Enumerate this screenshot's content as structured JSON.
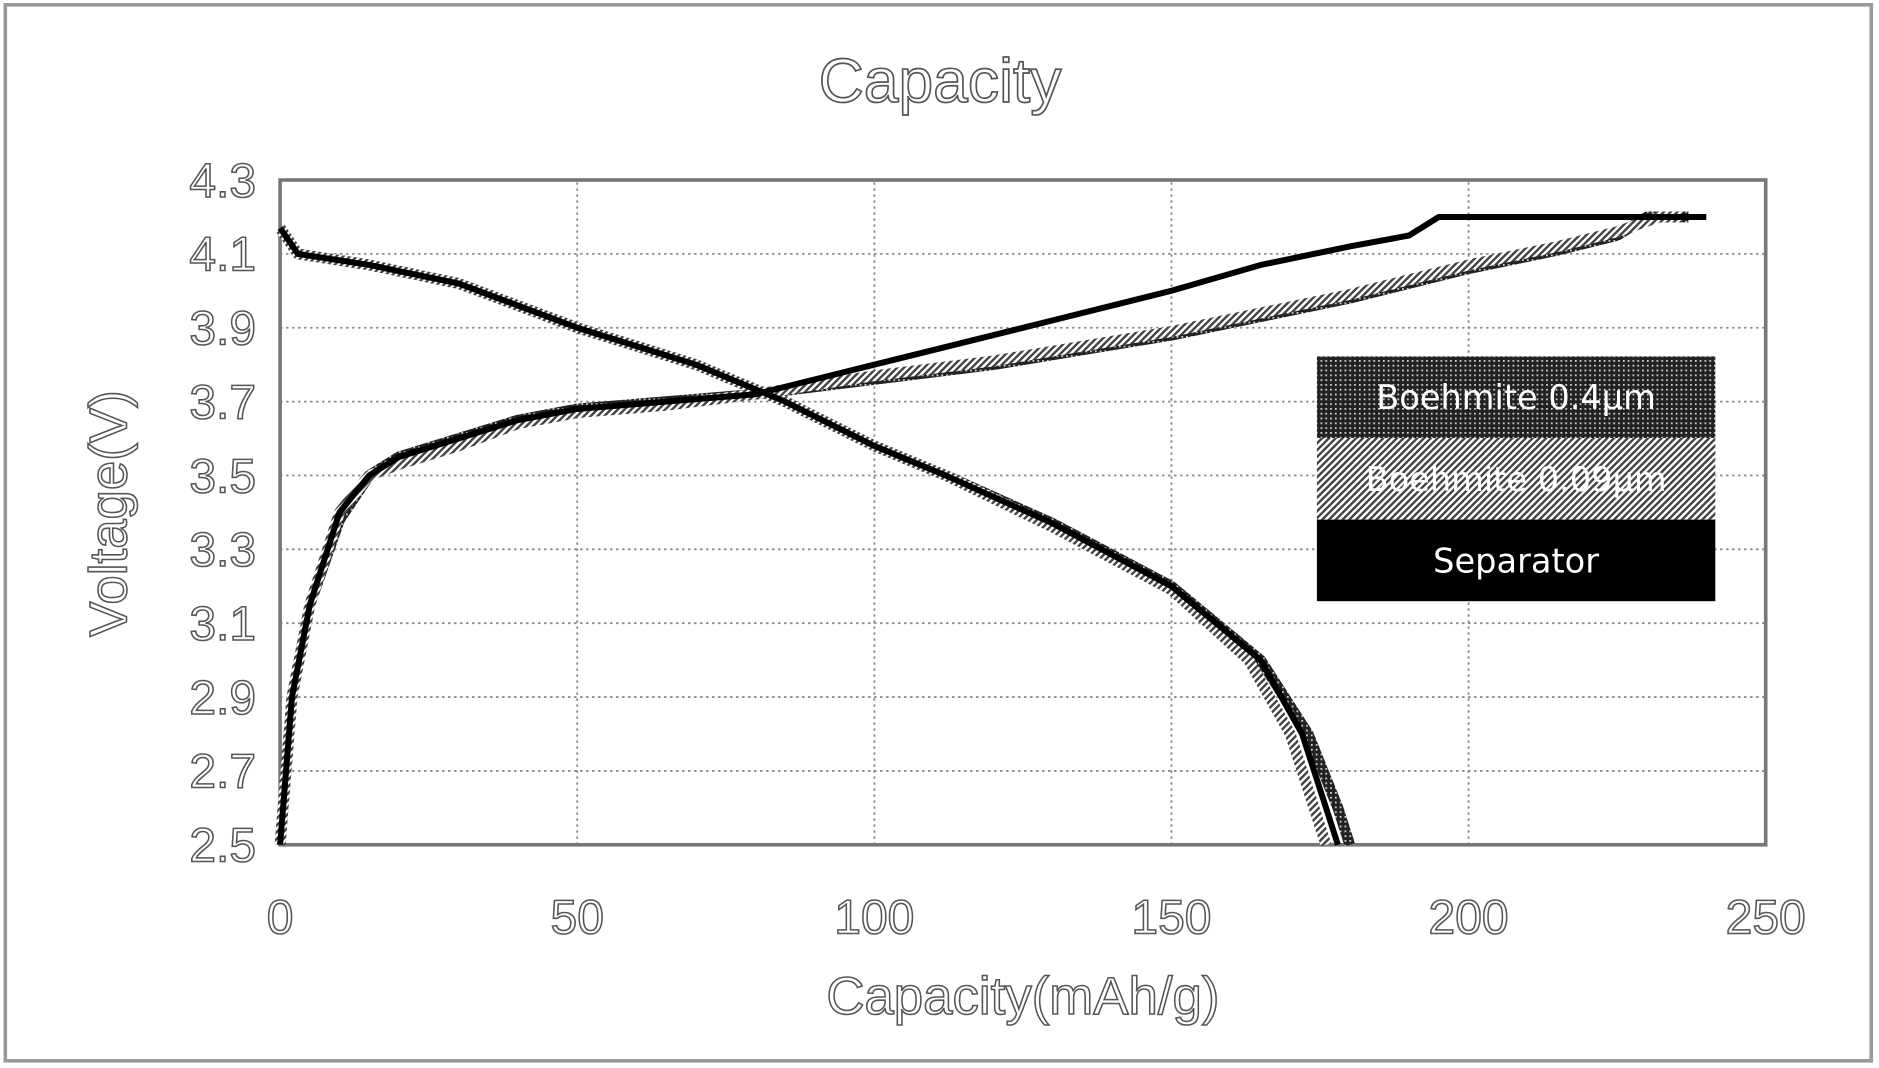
{
  "chart_data": {
    "type": "line",
    "title": "Capacity",
    "xlabel": "Capacity(mAh/g)",
    "ylabel": "Voltage(V)",
    "xlim": [
      0,
      250
    ],
    "ylim": [
      2.5,
      4.3
    ],
    "xticks": [
      "0",
      "50",
      "100",
      "150",
      "200",
      "250"
    ],
    "yticks": [
      "2.5",
      "2.7",
      "2.9",
      "3.1",
      "3.3",
      "3.5",
      "3.7",
      "3.9",
      "4.1",
      "4.3"
    ],
    "grid": true,
    "legend_position": "right",
    "series": [
      {
        "name": "Boehmite 0.4µm",
        "pattern": "crosshatch",
        "color": "#333333",
        "charge": [
          [
            0,
            2.5
          ],
          [
            2,
            2.9
          ],
          [
            5,
            3.15
          ],
          [
            10,
            3.38
          ],
          [
            15,
            3.5
          ],
          [
            20,
            3.55
          ],
          [
            30,
            3.6
          ],
          [
            40,
            3.65
          ],
          [
            50,
            3.68
          ],
          [
            65,
            3.7
          ],
          [
            80,
            3.72
          ],
          [
            100,
            3.76
          ],
          [
            120,
            3.8
          ],
          [
            150,
            3.88
          ],
          [
            180,
            3.98
          ],
          [
            200,
            4.06
          ],
          [
            215,
            4.11
          ],
          [
            225,
            4.15
          ],
          [
            230,
            4.2
          ],
          [
            237,
            4.2
          ]
        ],
        "discharge": [
          [
            0,
            4.17
          ],
          [
            3,
            4.1
          ],
          [
            15,
            4.07
          ],
          [
            30,
            4.02
          ],
          [
            40,
            3.96
          ],
          [
            50,
            3.9
          ],
          [
            70,
            3.8
          ],
          [
            85,
            3.7
          ],
          [
            100,
            3.58
          ],
          [
            112,
            3.5
          ],
          [
            130,
            3.37
          ],
          [
            150,
            3.2
          ],
          [
            165,
            3.0
          ],
          [
            173,
            2.8
          ],
          [
            178,
            2.6
          ],
          [
            180,
            2.5
          ]
        ]
      },
      {
        "name": "Boehmite 0.09µm",
        "pattern": "diagonal",
        "color": "#777777",
        "charge": [
          [
            0,
            2.5
          ],
          [
            2,
            2.9
          ],
          [
            5,
            3.15
          ],
          [
            10,
            3.4
          ],
          [
            15,
            3.5
          ],
          [
            20,
            3.53
          ],
          [
            30,
            3.58
          ],
          [
            40,
            3.64
          ],
          [
            50,
            3.67
          ],
          [
            65,
            3.69
          ],
          [
            80,
            3.72
          ],
          [
            100,
            3.77
          ],
          [
            120,
            3.81
          ],
          [
            150,
            3.89
          ],
          [
            180,
            3.99
          ],
          [
            200,
            4.07
          ],
          [
            215,
            4.12
          ],
          [
            225,
            4.16
          ],
          [
            232,
            4.2
          ],
          [
            236,
            4.2
          ]
        ],
        "discharge": [
          [
            0,
            4.17
          ],
          [
            3,
            4.1
          ],
          [
            15,
            4.07
          ],
          [
            30,
            4.02
          ],
          [
            40,
            3.96
          ],
          [
            50,
            3.9
          ],
          [
            70,
            3.8
          ],
          [
            85,
            3.7
          ],
          [
            100,
            3.58
          ],
          [
            112,
            3.5
          ],
          [
            130,
            3.36
          ],
          [
            150,
            3.19
          ],
          [
            163,
            3.0
          ],
          [
            170,
            2.8
          ],
          [
            174,
            2.6
          ],
          [
            176,
            2.5
          ]
        ]
      },
      {
        "name": "Separator",
        "pattern": "solid",
        "color": "#000000",
        "charge": [
          [
            0,
            2.5
          ],
          [
            2,
            2.9
          ],
          [
            5,
            3.15
          ],
          [
            10,
            3.4
          ],
          [
            15,
            3.5
          ],
          [
            20,
            3.55
          ],
          [
            30,
            3.6
          ],
          [
            40,
            3.65
          ],
          [
            50,
            3.68
          ],
          [
            65,
            3.7
          ],
          [
            80,
            3.72
          ],
          [
            95,
            3.78
          ],
          [
            110,
            3.84
          ],
          [
            130,
            3.92
          ],
          [
            150,
            4.0
          ],
          [
            165,
            4.07
          ],
          [
            180,
            4.12
          ],
          [
            190,
            4.15
          ],
          [
            195,
            4.2
          ],
          [
            240,
            4.2
          ]
        ],
        "discharge": [
          [
            0,
            4.17
          ],
          [
            3,
            4.1
          ],
          [
            15,
            4.07
          ],
          [
            30,
            4.02
          ],
          [
            40,
            3.96
          ],
          [
            50,
            3.9
          ],
          [
            70,
            3.8
          ],
          [
            85,
            3.7
          ],
          [
            100,
            3.58
          ],
          [
            112,
            3.5
          ],
          [
            130,
            3.37
          ],
          [
            150,
            3.2
          ],
          [
            165,
            3.0
          ],
          [
            172,
            2.8
          ],
          [
            176,
            2.6
          ],
          [
            178,
            2.5
          ]
        ]
      }
    ]
  }
}
